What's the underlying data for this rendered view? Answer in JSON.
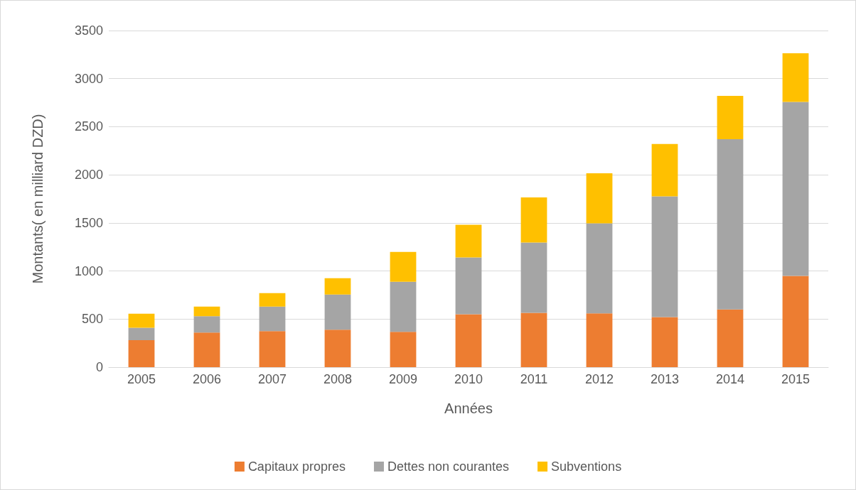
{
  "chart_data": {
    "type": "bar",
    "stacked": true,
    "xlabel": "Années",
    "ylabel": "Montants( en milliard DZD)",
    "categories": [
      "2005",
      "2006",
      "2007",
      "2008",
      "2009",
      "2010",
      "2011",
      "2012",
      "2013",
      "2014",
      "2015"
    ],
    "series": [
      {
        "name": "Capitaux propres",
        "color": "#ed7d31",
        "values": [
          280,
          360,
          375,
          390,
          368,
          550,
          565,
          560,
          520,
          600,
          948
        ]
      },
      {
        "name": "Dettes non courantes",
        "color": "#a5a5a5",
        "values": [
          130,
          170,
          255,
          365,
          520,
          590,
          730,
          935,
          1255,
          1770,
          1810
        ]
      },
      {
        "name": "Subventions",
        "color": "#ffc000",
        "values": [
          145,
          100,
          140,
          170,
          310,
          340,
          470,
          520,
          545,
          450,
          505
        ]
      }
    ],
    "ylim": [
      0,
      3500
    ],
    "yticks": [
      0,
      500,
      1000,
      1500,
      2000,
      2500,
      3000,
      3500
    ],
    "grid": "y",
    "legend": "bottom"
  }
}
